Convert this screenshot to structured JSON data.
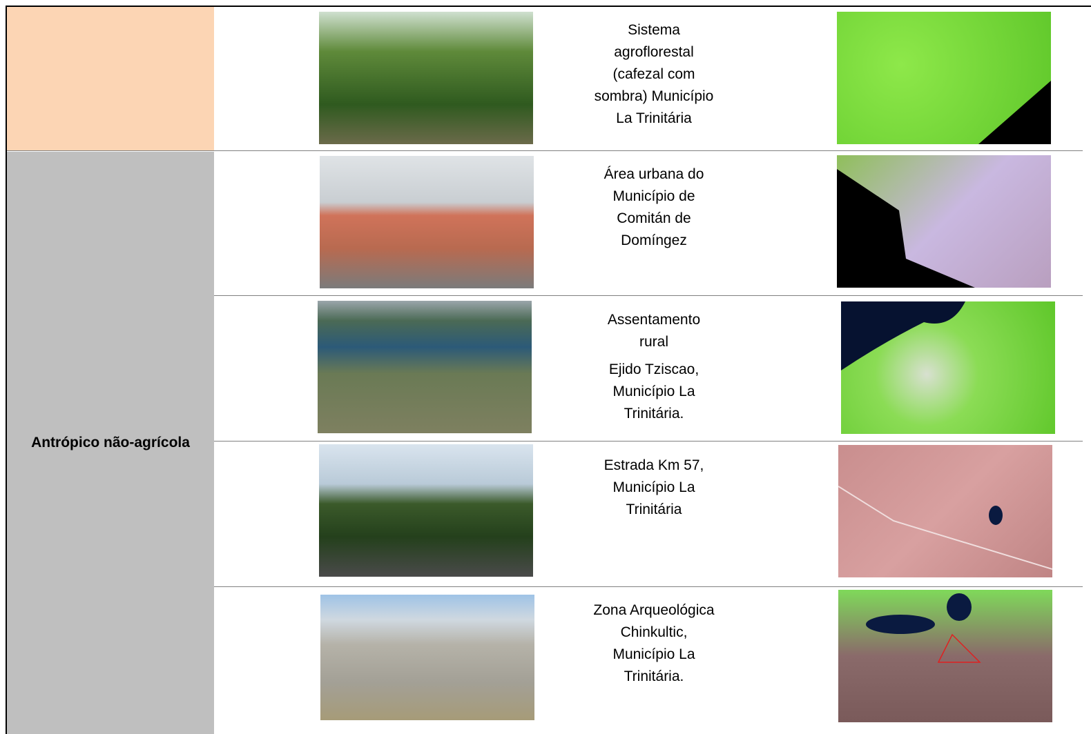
{
  "table": {
    "category": "Antrópico não-agrícola",
    "rows": [
      {
        "description": [
          "Sistema agroflorestal (cafezal com sombra) Município La Trinitária"
        ]
      },
      {
        "description": [
          "Área urbana do Município de Comitán de Domíngez"
        ]
      },
      {
        "description": [
          "Assentamento rural",
          "Ejido Tziscao, Município La Trinitária."
        ]
      },
      {
        "description": [
          "Estrada Km 57, Município La Trinitária"
        ]
      },
      {
        "description": [
          "Zona Arqueológica Chinkultic, Município La Trinitária."
        ]
      }
    ]
  }
}
